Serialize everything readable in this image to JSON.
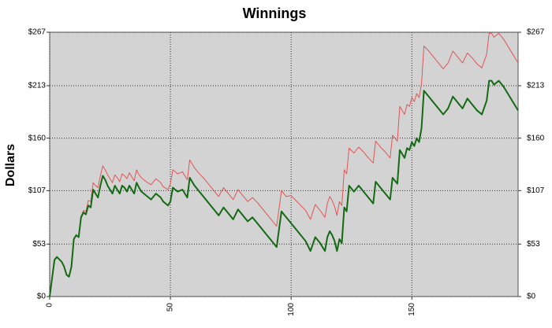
{
  "chart_data": {
    "type": "line",
    "title": "Winnings",
    "ylabel": "Dollars",
    "x": [
      0,
      2,
      3,
      5,
      6,
      7,
      8,
      9,
      10,
      11,
      12,
      13,
      14,
      15,
      16,
      17,
      18,
      19,
      20,
      21,
      22,
      23,
      24,
      25,
      26,
      27,
      28,
      29,
      30,
      31,
      32,
      33,
      34,
      35,
      36,
      37,
      38,
      40,
      42,
      44,
      46,
      47,
      49,
      50,
      51,
      53,
      55,
      56,
      57,
      58,
      60,
      62,
      64,
      66,
      68,
      70,
      72,
      74,
      76,
      78,
      80,
      82,
      84,
      86,
      88,
      90,
      92,
      94,
      96,
      98,
      100,
      102,
      104,
      106,
      108,
      110,
      112,
      114,
      115,
      116,
      117,
      118,
      119,
      120,
      121,
      122,
      123,
      124,
      126,
      128,
      130,
      132,
      134,
      135,
      137,
      139,
      141,
      142,
      144,
      145,
      147,
      148,
      149,
      150,
      151,
      152,
      153,
      154,
      155,
      157,
      159,
      161,
      163,
      165,
      167,
      169,
      171,
      173,
      175,
      177,
      179,
      181,
      182,
      183,
      184,
      186,
      188,
      190,
      192,
      194
    ],
    "series": [
      {
        "color": "#e05555",
        "width": 1,
        "values": [
          0,
          37,
          40,
          35,
          30,
          22,
          20,
          30,
          58,
          62,
          60,
          81,
          87,
          86,
          97,
          96,
          115,
          112,
          110,
          122,
          132,
          128,
          123,
          119,
          115,
          123,
          120,
          116,
          124,
          122,
          119,
          125,
          121,
          117,
          128,
          123,
          120,
          116,
          113,
          119,
          115,
          111,
          108,
          114,
          128,
          124,
          126,
          122,
          118,
          138,
          130,
          124,
          119,
          113,
          107,
          101,
          110,
          104,
          98,
          108,
          102,
          96,
          100,
          95,
          89,
          83,
          77,
          71,
          107,
          101,
          102,
          97,
          92,
          87,
          78,
          93,
          87,
          80,
          94,
          101,
          97,
          91,
          82,
          96,
          92,
          128,
          124,
          150,
          145,
          151,
          146,
          140,
          135,
          157,
          151,
          146,
          140,
          163,
          157,
          192,
          184,
          194,
          192,
          201,
          197,
          205,
          201,
          215,
          253,
          248,
          242,
          236,
          230,
          236,
          248,
          242,
          236,
          246,
          241,
          235,
          231,
          245,
          266,
          266,
          262,
          266,
          260,
          252,
          244,
          236
        ]
      },
      {
        "color": "#146a14",
        "width": 2,
        "values": [
          0,
          37,
          40,
          35,
          30,
          22,
          20,
          30,
          58,
          62,
          60,
          80,
          85,
          83,
          92,
          90,
          108,
          104,
          100,
          112,
          122,
          118,
          112,
          108,
          104,
          112,
          108,
          104,
          112,
          110,
          106,
          112,
          108,
          104,
          115,
          110,
          106,
          102,
          98,
          104,
          100,
          96,
          92,
          96,
          110,
          106,
          108,
          104,
          100,
          120,
          112,
          106,
          100,
          94,
          88,
          82,
          90,
          84,
          78,
          88,
          82,
          76,
          80,
          74,
          68,
          62,
          56,
          50,
          86,
          80,
          74,
          68,
          62,
          56,
          46,
          60,
          54,
          46,
          60,
          66,
          62,
          56,
          46,
          58,
          54,
          90,
          86,
          112,
          106,
          112,
          106,
          100,
          94,
          116,
          110,
          104,
          98,
          120,
          114,
          148,
          140,
          150,
          148,
          156,
          152,
          160,
          156,
          170,
          208,
          202,
          196,
          190,
          184,
          190,
          202,
          196,
          190,
          200,
          194,
          188,
          184,
          198,
          218,
          218,
          214,
          218,
          212,
          204,
          196,
          188
        ]
      }
    ],
    "xlim": [
      0,
      194
    ],
    "xticks": [
      0,
      50,
      100,
      150
    ],
    "ylim": [
      0,
      267
    ],
    "yticks": [
      {
        "value": 0,
        "label": "$0"
      },
      {
        "value": 53,
        "label": "$53"
      },
      {
        "value": 107,
        "label": "$107"
      },
      {
        "value": 160,
        "label": "$160"
      },
      {
        "value": 213,
        "label": "$213"
      },
      {
        "value": 267,
        "label": "$267"
      }
    ],
    "y2lim": [
      0,
      267
    ],
    "y2ticks": [
      {
        "value": 0,
        "label": "$0"
      },
      {
        "value": 53,
        "label": "$53"
      },
      {
        "value": 107,
        "label": "$107"
      },
      {
        "value": 160,
        "label": "$160"
      },
      {
        "value": 213,
        "label": "$213"
      },
      {
        "value": 267,
        "label": "$267"
      }
    ],
    "grid": true,
    "background": "#d3d3d3"
  }
}
